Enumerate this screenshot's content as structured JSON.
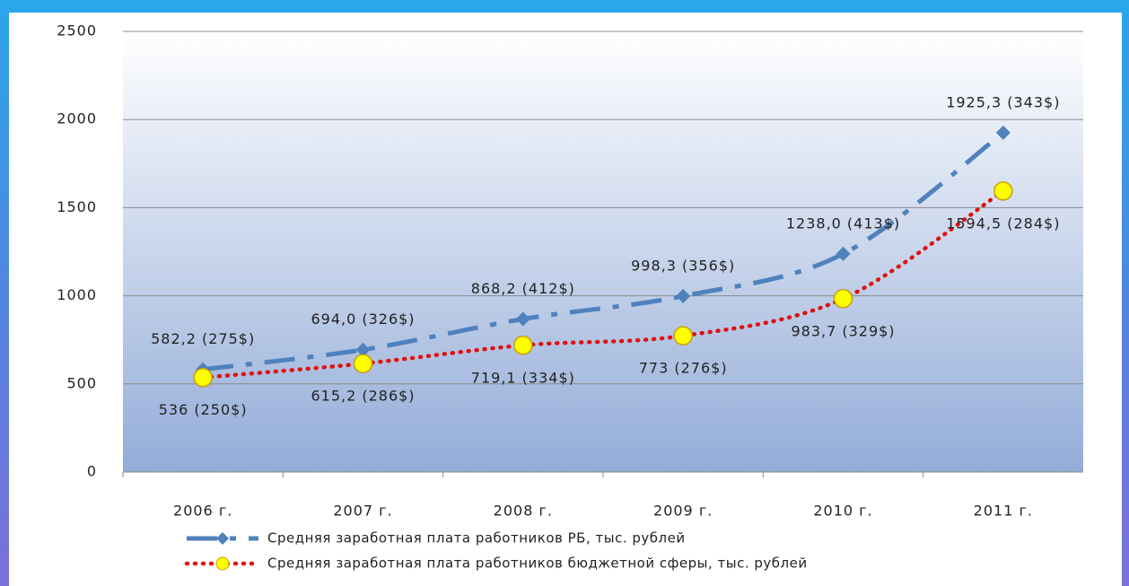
{
  "chart_data": {
    "type": "line",
    "categories": [
      "2006 г.",
      "2007 г.",
      "2008 г.",
      "2009 г.",
      "2010 г.",
      "2011 г."
    ],
    "series": [
      {
        "name": "Средняя заработная плата работников РБ, тыс. рублей",
        "color": "#4f81bd",
        "values": [
          582.2,
          694.0,
          868.2,
          998.3,
          1238.0,
          1925.3
        ],
        "value_labels": [
          "582,2 (275$)",
          "694,0 (326$)",
          "868,2 (412$)",
          "998,3 (356$)",
          "1238,0 (413$)",
          "1925,3 (343$)"
        ]
      },
      {
        "name": "Средняя заработная плата работников бюджетной сферы, тыс. рублей",
        "color": "#e01010",
        "values": [
          536,
          615.2,
          719.1,
          773,
          983.7,
          1594.5
        ],
        "value_labels": [
          "536 (250$)",
          "615,2 (286$)",
          "719,1 (334$)",
          "773 (276$)",
          "983,7 (329$)",
          "1594,5 (284$)"
        ]
      }
    ],
    "ylim": [
      0,
      2500
    ],
    "yticks": [
      0,
      500,
      1000,
      1500,
      2000,
      2500
    ],
    "grid": true
  }
}
